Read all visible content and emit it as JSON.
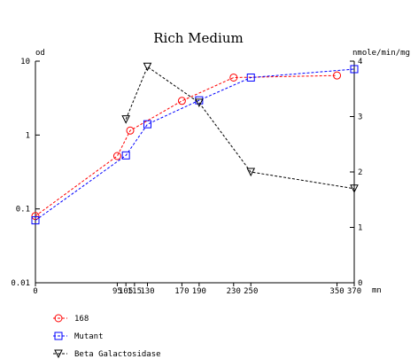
{
  "chart_data": {
    "type": "line",
    "title": "Rich Medium",
    "x_unit_label": "mn",
    "left_axis": {
      "label": "od",
      "scale": "log",
      "range": [
        0.01,
        10
      ],
      "ticks": [
        "10",
        "1",
        "0.1",
        "0.01"
      ]
    },
    "right_axis": {
      "label": "nmole/min/mg",
      "scale": "linear",
      "range": [
        0,
        4
      ],
      "ticks": [
        "4",
        "3",
        "2",
        "1",
        "0"
      ]
    },
    "x_axis": {
      "range": [
        0,
        370
      ],
      "ticks": [
        "0",
        "95",
        "105",
        "115",
        "130",
        "170",
        "190",
        "230",
        "250",
        "350",
        "370"
      ]
    },
    "series": [
      {
        "name": "168",
        "axis": "left",
        "color": "#ff0000",
        "marker": "circle",
        "x": [
          0,
          95,
          110,
          170,
          230,
          350
        ],
        "y": [
          0.08,
          0.52,
          1.15,
          2.9,
          6.0,
          6.4
        ]
      },
      {
        "name": "Mutant",
        "axis": "left",
        "color": "#0000ff",
        "marker": "square",
        "x": [
          0,
          105,
          130,
          190,
          250,
          370
        ],
        "y": [
          0.07,
          0.53,
          1.4,
          2.95,
          6.0,
          7.8
        ]
      },
      {
        "name": "Beta Galactosidase",
        "axis": "right",
        "color": "#000000",
        "marker": "triangle-down",
        "x": [
          105,
          130,
          190,
          250,
          370
        ],
        "y": [
          2.95,
          3.9,
          3.25,
          2.0,
          1.7
        ]
      }
    ],
    "legend_position": "bottom-left",
    "grid": false
  }
}
